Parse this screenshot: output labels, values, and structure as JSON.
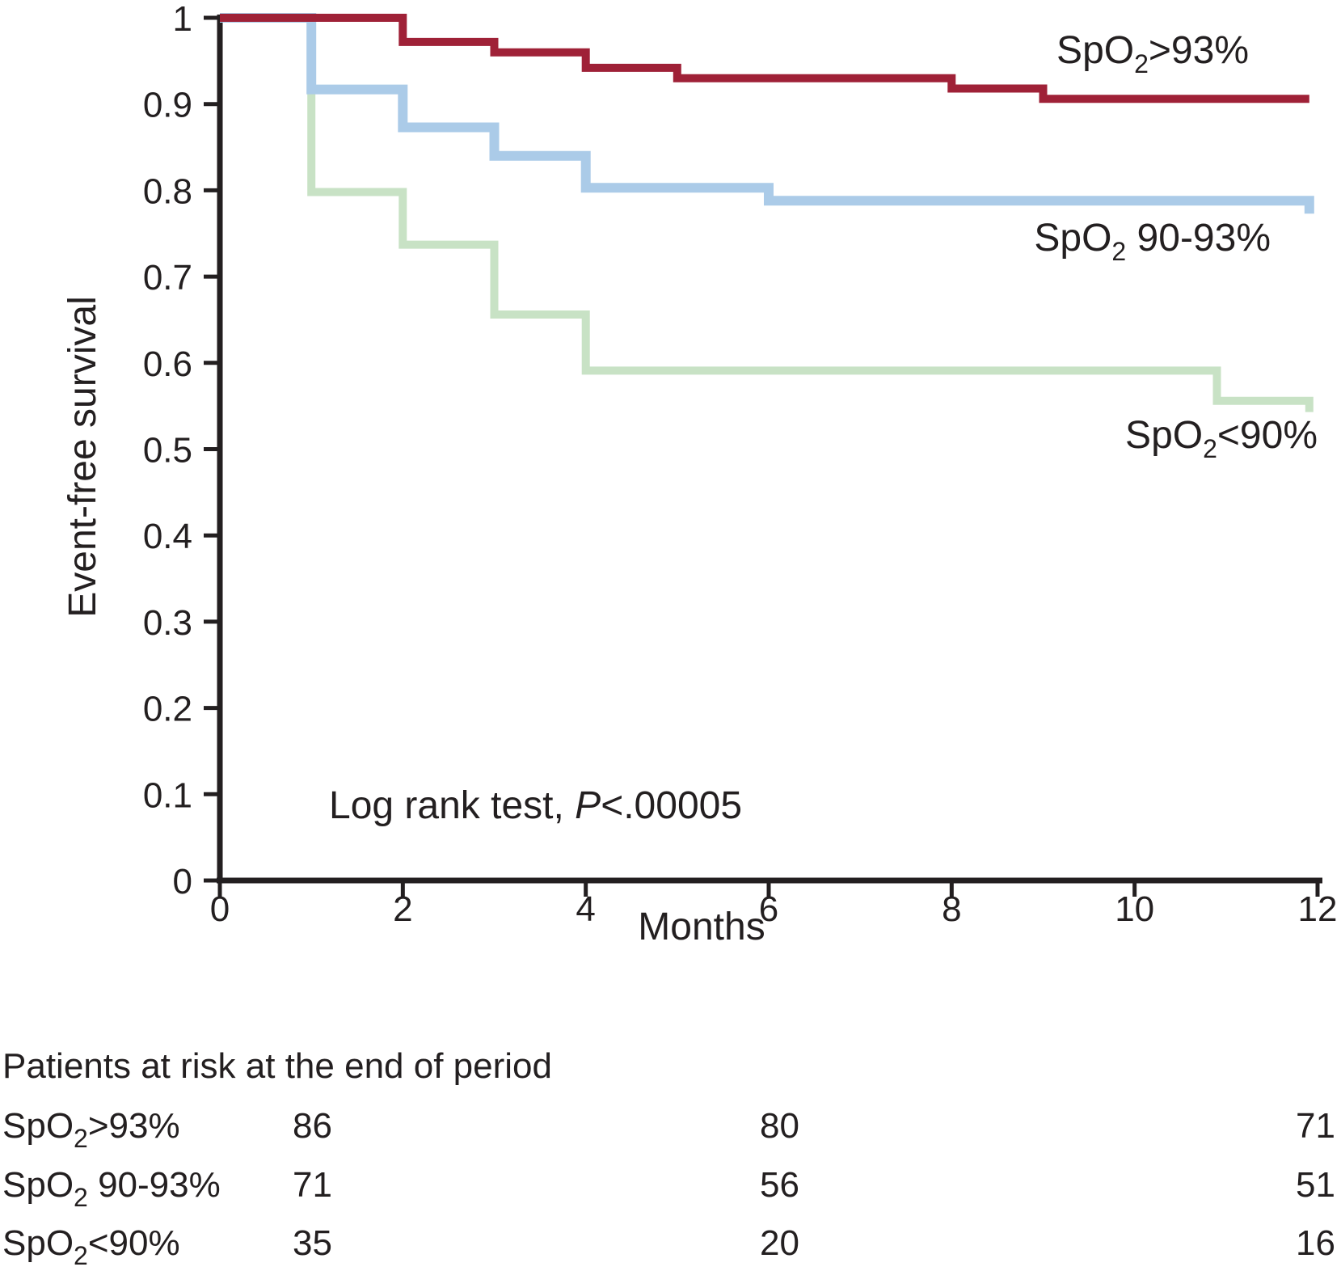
{
  "figure": {
    "background": "#ffffff",
    "text_color": "#231f20",
    "axis_color": "#231f20"
  },
  "chart_data": {
    "type": "line",
    "subtype": "kaplan-meier-step-curves",
    "title": "",
    "xlabel": "Months",
    "ylabel": "Event-free survival",
    "xlim": [
      0,
      12
    ],
    "ylim": [
      0,
      1
    ],
    "x_ticks": [
      0,
      2,
      4,
      6,
      8,
      10,
      12
    ],
    "y_ticks": [
      0,
      0.1,
      0.2,
      0.3,
      0.4,
      0.5,
      0.6,
      0.7,
      0.8,
      0.9,
      1
    ],
    "grid": false,
    "legend_position": "labels-at-curve-right",
    "annotation": {
      "pre": "Log rank test, ",
      "italic": "P",
      "post": "<.00005"
    },
    "series": [
      {
        "id": "spo2-gt-93",
        "label": {
          "pre": "SpO",
          "sub": "2",
          "post": ">93%"
        },
        "color": "#9f2137",
        "line_width": 10,
        "steps": [
          [
            0,
            1.0
          ],
          [
            2,
            0.972
          ],
          [
            3,
            0.96
          ],
          [
            4,
            0.942
          ],
          [
            5,
            0.93
          ],
          [
            8,
            0.918
          ],
          [
            9,
            0.906
          ]
        ],
        "end_month": 11.91
      },
      {
        "id": "spo2-90-93",
        "label": {
          "pre": "SpO",
          "sub": "2",
          "post": " 90-93%"
        },
        "color": "#abcbe8",
        "line_width": 12,
        "steps": [
          [
            0,
            1.0
          ],
          [
            1,
            0.917
          ],
          [
            2,
            0.873
          ],
          [
            3,
            0.84
          ],
          [
            4,
            0.803
          ],
          [
            6,
            0.788
          ],
          [
            11.91,
            0.773
          ]
        ],
        "end_month": 11.91
      },
      {
        "id": "spo2-lt-90",
        "label": {
          "pre": "SpO",
          "sub": "2",
          "post": "<90%"
        },
        "color": "#c8e2c5",
        "line_width": 10,
        "steps": [
          [
            0,
            1.0
          ],
          [
            1,
            0.798
          ],
          [
            2,
            0.737
          ],
          [
            3,
            0.656
          ],
          [
            4,
            0.591
          ],
          [
            10.9,
            0.556
          ],
          [
            11.91,
            0.543
          ]
        ],
        "end_month": 11.91
      }
    ],
    "at_risk": {
      "title": "Patients at risk at the end of period",
      "rows": [
        {
          "label": {
            "pre": "SpO",
            "sub": "2",
            "post": ">93%"
          },
          "values": [
            "86",
            "80",
            "71"
          ]
        },
        {
          "label": {
            "pre": "SpO",
            "sub": "2",
            "post": " 90-93%"
          },
          "values": [
            "71",
            "56",
            "51"
          ]
        },
        {
          "label": {
            "pre": "SpO",
            "sub": "2",
            "post": "<90%"
          },
          "values": [
            "35",
            "20",
            "16"
          ]
        }
      ]
    }
  }
}
